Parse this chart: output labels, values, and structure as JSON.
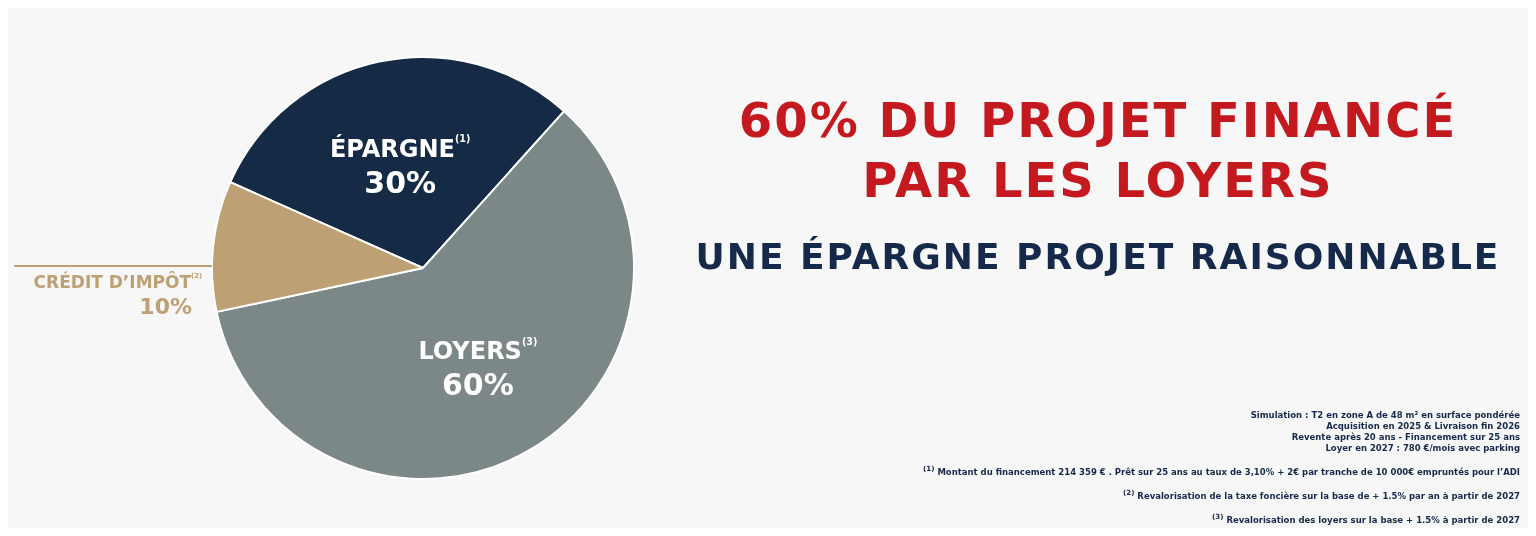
{
  "chart_data": {
    "type": "pie",
    "title": "60% DU PROJET FINANCÉ PAR LES LOYERS",
    "subtitle": "UNE ÉPARGNE PROJET RAISONNABLE",
    "categories": [
      "ÉPARGNE$^{(1)}$",
      "LOYERS$^{(3)}$",
      "CRÉDIT D’IMPÔT$^{(2)}$"
    ],
    "values": [
      30,
      60,
      10
    ],
    "value_labels": [
      "30%",
      "60%",
      "10%"
    ],
    "colors": [
      "#142a45",
      "#7c8887",
      "#bea075"
    ],
    "annotations": [
      "Simulation : T2 en zone A de 48 m² en surface pondérée",
      "Acquisition en 2025 & Livraison fin 2026",
      "Revente après 20 ans - Financement sur 25 ans",
      "Loyer en 2027 : 780 €/mois avec parking",
      "$^{(1)}$ Montant du financement  214 359 € . Prêt sur 25 ans au taux de 3,10% + 2€ par tranche de 10 000€ empruntés pour l’ADI",
      "$^{(2)}$ Revalorisation de la taxe foncière sur la base de + 1.5% par an à partir de  2027",
      "$^{(3)}$ Revalorisation des loyers sur la base + 1.5% à partir de 2027"
    ]
  }
}
